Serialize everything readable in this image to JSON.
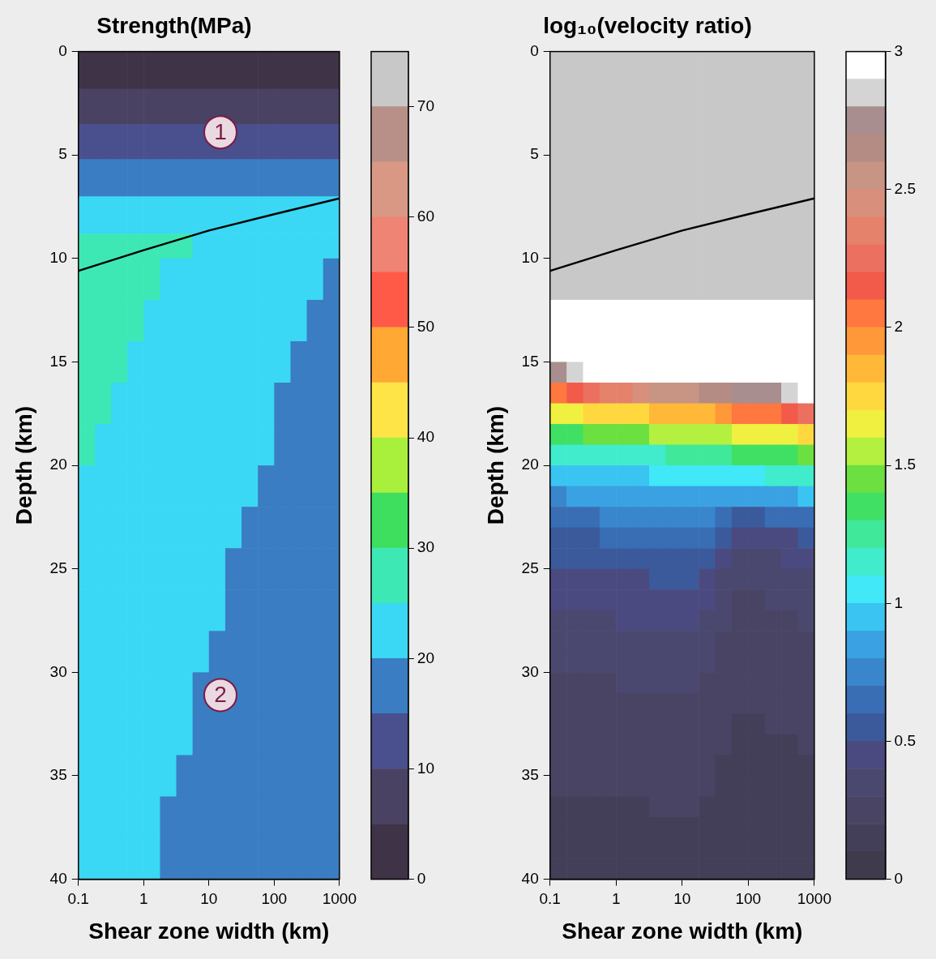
{
  "chart_data": [
    {
      "type": "heatmap",
      "title": "Strength(MPa)",
      "x_label": "Shear zone width (km)",
      "y_label": "Depth (km)",
      "log": "x",
      "grid": false,
      "xlim": [
        0.1,
        1000
      ],
      "xticks": [
        0.1,
        1,
        10,
        100,
        1000
      ],
      "ylim": [
        0,
        40
      ],
      "yticks": [
        0,
        5,
        10,
        15,
        20,
        25,
        30,
        35,
        40
      ],
      "x_edges": [
        0.1,
        0.178,
        0.316,
        0.562,
        1,
        1.78,
        3.16,
        5.62,
        10,
        17.8,
        31.6,
        56.2,
        100,
        178,
        316,
        562,
        1000
      ],
      "y_edges": [
        0,
        1.8,
        3.5,
        5.2,
        7,
        8.8,
        10,
        12,
        14,
        16,
        18,
        20,
        22,
        24,
        26,
        28,
        30,
        32,
        34,
        36,
        38,
        40
      ],
      "cells": [
        [
          2.5,
          2.5,
          2.5,
          2.5,
          2.5,
          2.5,
          2.5,
          2.5,
          2.5,
          2.5,
          2.5,
          2.5,
          2.5,
          2.5,
          2.5,
          2.5
        ],
        [
          7.5,
          7.5,
          7.5,
          7.5,
          7.5,
          7.5,
          7.5,
          7.5,
          7.5,
          7.5,
          7.5,
          7.5,
          7.5,
          7.5,
          7.5,
          7.5
        ],
        [
          12.5,
          12.5,
          12.5,
          12.5,
          12.5,
          12.5,
          12.5,
          12.5,
          12.5,
          12.5,
          12.5,
          12.5,
          12.5,
          12.5,
          12.5,
          12.5
        ],
        [
          17.5,
          17.5,
          17.5,
          17.5,
          17.5,
          17.5,
          17.5,
          17.5,
          17.5,
          17.5,
          17.5,
          17.5,
          17.5,
          17.5,
          17.5,
          17.5
        ],
        [
          22.5,
          22.5,
          22.5,
          22.5,
          22.5,
          22.5,
          22.5,
          22.5,
          22.5,
          22.5,
          22.5,
          22.5,
          22.5,
          22.5,
          22.5,
          22.5
        ],
        [
          27.5,
          27.5,
          27.5,
          27.5,
          27.5,
          27.5,
          27.5,
          22.5,
          22.5,
          22.5,
          22.5,
          22.5,
          22.5,
          22.5,
          22.5,
          22.5
        ],
        [
          27.5,
          27.5,
          27.5,
          27.5,
          27.5,
          22.5,
          22.5,
          22.5,
          22.5,
          22.5,
          22.5,
          22.5,
          22.5,
          22.5,
          22.5,
          17.5
        ],
        [
          27.5,
          27.5,
          27.5,
          27.5,
          22.5,
          22.5,
          22.5,
          22.5,
          22.5,
          22.5,
          22.5,
          22.5,
          22.5,
          22.5,
          17.5,
          17.5
        ],
        [
          27.5,
          27.5,
          27.5,
          22.5,
          22.5,
          22.5,
          22.5,
          22.5,
          22.5,
          22.5,
          22.5,
          22.5,
          22.5,
          17.5,
          17.5,
          17.5
        ],
        [
          27.5,
          27.5,
          22.5,
          22.5,
          22.5,
          22.5,
          22.5,
          22.5,
          22.5,
          22.5,
          22.5,
          22.5,
          17.5,
          17.5,
          17.5,
          17.5
        ],
        [
          27.5,
          22.5,
          22.5,
          22.5,
          22.5,
          22.5,
          22.5,
          22.5,
          22.5,
          22.5,
          22.5,
          22.5,
          17.5,
          17.5,
          17.5,
          17.5
        ],
        [
          22.5,
          22.5,
          22.5,
          22.5,
          22.5,
          22.5,
          22.5,
          22.5,
          22.5,
          22.5,
          22.5,
          17.5,
          17.5,
          17.5,
          17.5,
          17.5
        ],
        [
          22.5,
          22.5,
          22.5,
          22.5,
          22.5,
          22.5,
          22.5,
          22.5,
          22.5,
          22.5,
          17.5,
          17.5,
          17.5,
          17.5,
          17.5,
          17.5
        ],
        [
          22.5,
          22.5,
          22.5,
          22.5,
          22.5,
          22.5,
          22.5,
          22.5,
          22.5,
          17.5,
          17.5,
          17.5,
          17.5,
          17.5,
          17.5,
          17.5
        ],
        [
          22.5,
          22.5,
          22.5,
          22.5,
          22.5,
          22.5,
          22.5,
          22.5,
          22.5,
          17.5,
          17.5,
          17.5,
          17.5,
          17.5,
          17.5,
          17.5
        ],
        [
          22.5,
          22.5,
          22.5,
          22.5,
          22.5,
          22.5,
          22.5,
          22.5,
          17.5,
          17.5,
          17.5,
          17.5,
          17.5,
          17.5,
          17.5,
          17.5
        ],
        [
          22.5,
          22.5,
          22.5,
          22.5,
          22.5,
          22.5,
          22.5,
          17.5,
          17.5,
          17.5,
          17.5,
          17.5,
          17.5,
          17.5,
          17.5,
          17.5
        ],
        [
          22.5,
          22.5,
          22.5,
          22.5,
          22.5,
          22.5,
          22.5,
          17.5,
          17.5,
          17.5,
          17.5,
          17.5,
          17.5,
          17.5,
          17.5,
          17.5
        ],
        [
          22.5,
          22.5,
          22.5,
          22.5,
          22.5,
          22.5,
          17.5,
          17.5,
          17.5,
          17.5,
          17.5,
          17.5,
          17.5,
          17.5,
          17.5,
          17.5
        ],
        [
          22.5,
          22.5,
          22.5,
          22.5,
          22.5,
          17.5,
          17.5,
          17.5,
          17.5,
          17.5,
          17.5,
          17.5,
          17.5,
          17.5,
          17.5,
          17.5
        ],
        [
          22.5,
          22.5,
          22.5,
          22.5,
          22.5,
          17.5,
          17.5,
          17.5,
          17.5,
          17.5,
          17.5,
          17.5,
          17.5,
          17.5,
          17.5,
          17.5
        ]
      ],
      "colorbar": {
        "range": [
          0,
          75
        ],
        "ticks": [
          0,
          10,
          20,
          30,
          40,
          50,
          60,
          70
        ],
        "colors": [
          "#3f3447",
          "#4a4262",
          "#4a4f8e",
          "#3a7dc2",
          "#3ad8f4",
          "#3ee8b4",
          "#3ede5e",
          "#a8f03c",
          "#ffe448",
          "#ffa834",
          "#ff5a48",
          "#f08474",
          "#d89884",
          "#b89088",
          "#c8c8c8"
        ]
      },
      "series": [
        {
          "type": "line",
          "color": "#000000",
          "line_style": "solid",
          "x": [
            0.1,
            1,
            10,
            100,
            1000
          ],
          "values": [
            10.6,
            9.6,
            8.65,
            7.86,
            7.1
          ]
        }
      ],
      "annotations": [
        {
          "text": "1",
          "x": 15,
          "y": 3.9
        },
        {
          "text": "2",
          "x": 15,
          "y": 31.1
        }
      ]
    },
    {
      "type": "heatmap",
      "title": "log₁₀(velocity ratio)",
      "x_label": "Shear zone width (km)",
      "y_label": "Depth (km)",
      "log": "x",
      "grid": false,
      "xlim": [
        0.1,
        1000
      ],
      "xticks": [
        0.1,
        1,
        10,
        100,
        1000
      ],
      "ylim": [
        0,
        40
      ],
      "yticks": [
        0,
        5,
        10,
        15,
        20,
        25,
        30,
        35,
        40
      ],
      "x_edges": [
        0.1,
        0.178,
        0.316,
        0.562,
        1,
        1.78,
        3.16,
        5.62,
        10,
        17.8,
        31.6,
        56.2,
        100,
        178,
        316,
        562,
        1000
      ],
      "y_edges": [
        0,
        12,
        15,
        16,
        17,
        18,
        19,
        20,
        21,
        22,
        23,
        24,
        25,
        26,
        27,
        28,
        29,
        30,
        31,
        32,
        33,
        34,
        35,
        36,
        37,
        38,
        39,
        40
      ],
      "cells": [
        [
          null,
          null,
          null,
          null,
          null,
          null,
          null,
          null,
          null,
          null,
          null,
          null,
          null,
          null,
          null,
          null
        ],
        [
          3,
          3,
          3,
          3,
          3,
          3,
          3,
          3,
          3,
          3,
          3,
          3,
          3,
          3,
          3,
          3
        ],
        [
          2.8,
          2.87,
          2.93,
          3,
          3,
          3,
          3,
          3,
          3,
          3,
          3,
          3,
          3,
          3,
          3,
          3
        ],
        [
          2.05,
          2.14,
          2.23,
          2.32,
          2.32,
          2.41,
          2.5,
          2.56,
          2.56,
          2.62,
          2.68,
          2.74,
          2.74,
          2.8,
          2.87,
          2.93
        ],
        [
          1.65,
          1.68,
          1.71,
          1.74,
          1.74,
          1.77,
          1.8,
          1.85,
          1.85,
          1.9,
          1.95,
          2.0,
          2.0,
          2.05,
          2.14,
          2.23
        ],
        [
          1.35,
          1.38,
          1.41,
          1.44,
          1.44,
          1.47,
          1.5,
          1.53,
          1.53,
          1.56,
          1.59,
          1.62,
          1.62,
          1.65,
          1.68,
          1.71
        ],
        [
          1.1,
          1.12,
          1.14,
          1.16,
          1.16,
          1.18,
          1.2,
          1.23,
          1.23,
          1.26,
          1.29,
          1.32,
          1.32,
          1.35,
          1.38,
          1.41
        ],
        [
          0.93,
          0.94,
          0.96,
          0.97,
          0.97,
          0.99,
          1.0,
          1.02,
          1.02,
          1.04,
          1.06,
          1.08,
          1.08,
          1.1,
          1.12,
          1.14
        ],
        [
          0.79,
          0.8,
          0.81,
          0.82,
          0.84,
          0.85,
          0.87,
          0.88,
          0.88,
          0.88,
          0.85,
          0.84,
          0.84,
          0.85,
          0.88,
          0.9
        ],
        [
          0.67,
          0.68,
          0.7,
          0.71,
          0.72,
          0.73,
          0.75,
          0.76,
          0.77,
          0.73,
          0.64,
          0.59,
          0.59,
          0.62,
          0.64,
          0.67
        ],
        [
          0.58,
          0.59,
          0.6,
          0.61,
          0.63,
          0.64,
          0.65,
          0.66,
          0.67,
          0.63,
          0.5,
          0.45,
          0.45,
          0.47,
          0.49,
          0.51
        ],
        [
          0.5,
          0.51,
          0.52,
          0.52,
          0.54,
          0.55,
          0.56,
          0.57,
          0.59,
          0.52,
          0.41,
          0.38,
          0.38,
          0.39,
          0.4,
          0.42
        ],
        [
          0.45,
          0.46,
          0.47,
          0.47,
          0.48,
          0.49,
          0.5,
          0.5,
          0.51,
          0.47,
          0.38,
          0.33,
          0.33,
          0.35,
          0.36,
          0.38
        ],
        [
          0.41,
          0.41,
          0.42,
          0.42,
          0.43,
          0.44,
          0.45,
          0.45,
          0.46,
          0.42,
          0.35,
          0.3,
          0.3,
          0.32,
          0.33,
          0.35
        ],
        [
          0.38,
          0.38,
          0.39,
          0.39,
          0.4,
          0.4,
          0.41,
          0.41,
          0.41,
          0.39,
          0.32,
          0.28,
          0.28,
          0.29,
          0.3,
          0.32
        ],
        [
          0.35,
          0.35,
          0.36,
          0.36,
          0.37,
          0.37,
          0.38,
          0.38,
          0.38,
          0.36,
          0.29,
          0.26,
          0.26,
          0.27,
          0.28,
          0.29
        ],
        [
          0.32,
          0.32,
          0.33,
          0.33,
          0.34,
          0.34,
          0.35,
          0.35,
          0.35,
          0.33,
          0.27,
          0.24,
          0.24,
          0.25,
          0.26,
          0.27
        ],
        [
          0.29,
          0.29,
          0.3,
          0.3,
          0.31,
          0.31,
          0.32,
          0.32,
          0.32,
          0.3,
          0.25,
          0.22,
          0.22,
          0.23,
          0.24,
          0.25
        ],
        [
          0.27,
          0.27,
          0.28,
          0.28,
          0.28,
          0.29,
          0.29,
          0.29,
          0.3,
          0.28,
          0.23,
          0.2,
          0.2,
          0.21,
          0.22,
          0.23
        ],
        [
          0.25,
          0.25,
          0.26,
          0.26,
          0.26,
          0.27,
          0.27,
          0.27,
          0.28,
          0.26,
          0.21,
          0.19,
          0.19,
          0.2,
          0.2,
          0.21
        ],
        [
          0.23,
          0.23,
          0.24,
          0.24,
          0.24,
          0.25,
          0.25,
          0.25,
          0.26,
          0.24,
          0.2,
          0.18,
          0.18,
          0.19,
          0.19,
          0.2
        ],
        [
          0.21,
          0.21,
          0.22,
          0.22,
          0.22,
          0.23,
          0.23,
          0.23,
          0.24,
          0.22,
          0.19,
          0.17,
          0.17,
          0.18,
          0.18,
          0.19
        ],
        [
          0.2,
          0.2,
          0.2,
          0.2,
          0.2,
          0.21,
          0.21,
          0.21,
          0.22,
          0.2,
          0.18,
          0.16,
          0.16,
          0.17,
          0.17,
          0.18
        ],
        [
          0.19,
          0.19,
          0.19,
          0.19,
          0.19,
          0.19,
          0.2,
          0.2,
          0.2,
          0.19,
          0.17,
          0.15,
          0.15,
          0.16,
          0.16,
          0.17
        ],
        [
          0.18,
          0.18,
          0.18,
          0.18,
          0.18,
          0.18,
          0.19,
          0.19,
          0.19,
          0.18,
          0.16,
          0.14,
          0.14,
          0.15,
          0.15,
          0.16
        ],
        [
          0.17,
          0.17,
          0.17,
          0.17,
          0.17,
          0.17,
          0.18,
          0.18,
          0.18,
          0.17,
          0.15,
          0.13,
          0.13,
          0.14,
          0.14,
          0.15
        ],
        [
          0.16,
          0.16,
          0.16,
          0.16,
          0.16,
          0.16,
          0.17,
          0.17,
          0.17,
          0.16,
          0.14,
          0.12,
          0.12,
          0.13,
          0.13,
          0.14
        ]
      ],
      "colorbar": {
        "range": [
          0,
          3
        ],
        "ticks": [
          0,
          0.5,
          1,
          1.5,
          2,
          2.5,
          3
        ],
        "colors": [
          "#3f3a4c",
          "#443f58",
          "#494464",
          "#4b4870",
          "#4a4a80",
          "#3b5a9c",
          "#3a6eb4",
          "#3a86cc",
          "#3aa2e2",
          "#3ac4f2",
          "#40e8f8",
          "#40eccc",
          "#40e89a",
          "#40e064",
          "#6ce040",
          "#b4f040",
          "#f0f040",
          "#ffd840",
          "#ffb838",
          "#ff9838",
          "#ff7840",
          "#f25a4a",
          "#ec7060",
          "#e4826c",
          "#d8907c",
          "#c89484",
          "#b48c84",
          "#a88e8e",
          "#d4d4d4",
          "#ffffff"
        ]
      },
      "series": [
        {
          "type": "line",
          "color": "#000000",
          "line_style": "solid",
          "x": [
            0.1,
            1,
            10,
            100,
            1000
          ],
          "values": [
            10.6,
            9.6,
            8.65,
            7.86,
            7.1
          ]
        }
      ]
    }
  ]
}
